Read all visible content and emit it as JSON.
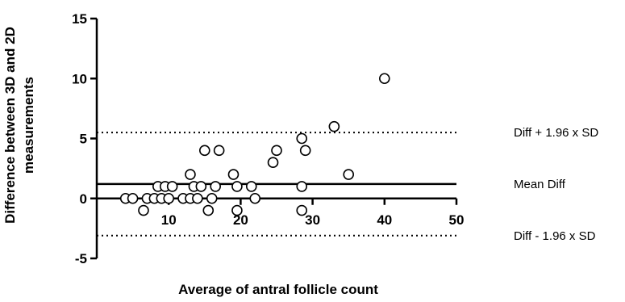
{
  "chart_data": {
    "type": "scatter",
    "title": "",
    "xlabel": "Average of antral follicle count",
    "ylabel_lines": [
      "Difference  between 3D and 2D",
      "measurements"
    ],
    "xlim": [
      0,
      50
    ],
    "ylim": [
      -5,
      15
    ],
    "x_ticks": [
      10,
      20,
      30,
      40,
      50
    ],
    "y_ticks": [
      15,
      10,
      5,
      0,
      -5
    ],
    "grid": false,
    "marker": "open-circle",
    "reference_lines": [
      {
        "name": "upper",
        "label": "Diff + 1.96 x SD",
        "y": 5.5,
        "style": "dotted"
      },
      {
        "name": "mean",
        "label": "Mean Diff",
        "y": 1.2,
        "style": "solid"
      },
      {
        "name": "lower",
        "label": "Diff - 1.96 x SD",
        "y": -3.1,
        "style": "dotted"
      }
    ],
    "points": [
      {
        "x": 4,
        "y": 0
      },
      {
        "x": 5,
        "y": 0
      },
      {
        "x": 6.5,
        "y": -1
      },
      {
        "x": 7,
        "y": 0
      },
      {
        "x": 8,
        "y": 0
      },
      {
        "x": 8.5,
        "y": 1
      },
      {
        "x": 9,
        "y": 0
      },
      {
        "x": 9.5,
        "y": 1
      },
      {
        "x": 10,
        "y": 0
      },
      {
        "x": 10.5,
        "y": 1
      },
      {
        "x": 12,
        "y": 0
      },
      {
        "x": 13,
        "y": 0
      },
      {
        "x": 13,
        "y": 2
      },
      {
        "x": 13.5,
        "y": 1
      },
      {
        "x": 14,
        "y": 0
      },
      {
        "x": 14.5,
        "y": 1
      },
      {
        "x": 15,
        "y": 4
      },
      {
        "x": 15.5,
        "y": -1
      },
      {
        "x": 16,
        "y": 0
      },
      {
        "x": 16.5,
        "y": 1
      },
      {
        "x": 17,
        "y": 4
      },
      {
        "x": 19,
        "y": 2
      },
      {
        "x": 19.5,
        "y": -1
      },
      {
        "x": 19.5,
        "y": 1
      },
      {
        "x": 21.5,
        "y": 1
      },
      {
        "x": 22,
        "y": 0
      },
      {
        "x": 24.5,
        "y": 3
      },
      {
        "x": 25,
        "y": 4
      },
      {
        "x": 28.5,
        "y": 5
      },
      {
        "x": 28.5,
        "y": 1
      },
      {
        "x": 28.5,
        "y": -1
      },
      {
        "x": 29,
        "y": 4
      },
      {
        "x": 33,
        "y": 6
      },
      {
        "x": 35,
        "y": 2
      },
      {
        "x": 40,
        "y": 10
      }
    ]
  }
}
